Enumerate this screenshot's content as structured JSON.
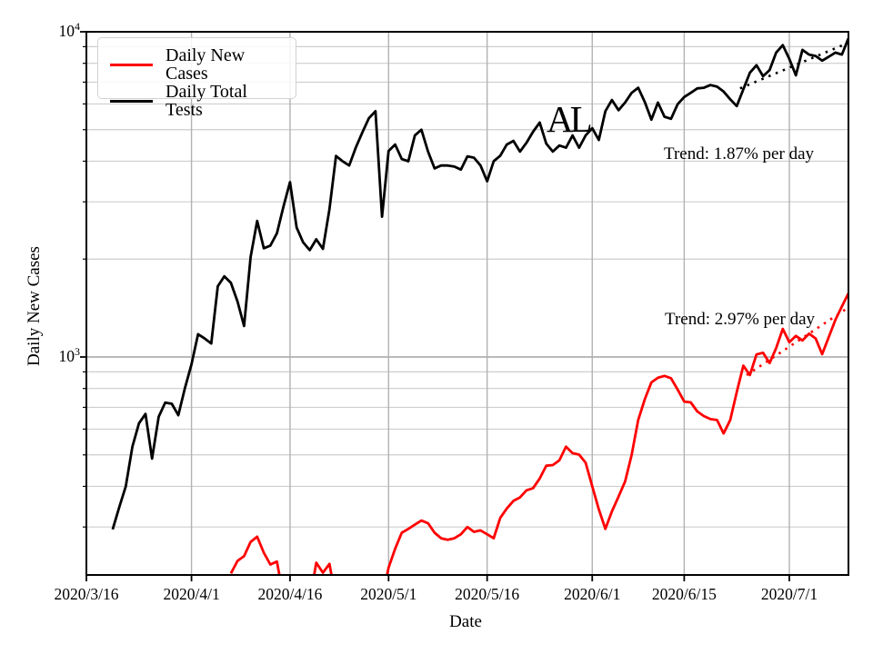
{
  "legend": {
    "entries": [
      {
        "label": "Daily New Cases",
        "color": "#ff0000"
      },
      {
        "label": "Daily Total Tests",
        "color": "#000000"
      }
    ]
  },
  "axes": {
    "xlabel": "Date",
    "ylabel": "Daily New Cases",
    "y_tick_labels": [
      {
        "base": "10",
        "exp": "4"
      },
      {
        "base": "10",
        "exp": "3"
      }
    ]
  },
  "annotations": {
    "state_label": "AL",
    "tests_trend": "Trend: 1.87% per day",
    "cases_trend": "Trend: 2.97% per day"
  },
  "chart_data": {
    "type": "line",
    "title": "AL",
    "xlabel": "Date",
    "ylabel": "Daily New Cases",
    "x_axis": {
      "unit": "days since 2020/3/16",
      "max_day": 116,
      "ticks": [
        {
          "day": 0,
          "label": "2020/3/16"
        },
        {
          "day": 16,
          "label": "2020/4/1"
        },
        {
          "day": 31,
          "label": "2020/4/16"
        },
        {
          "day": 46,
          "label": "2020/5/1"
        },
        {
          "day": 61,
          "label": "2020/5/16"
        },
        {
          "day": 77,
          "label": "2020/6/1"
        },
        {
          "day": 91,
          "label": "2020/6/15"
        },
        {
          "day": 107,
          "label": "2020/7/1"
        }
      ]
    },
    "y_axis": {
      "scale": "log",
      "lim": [
        213.6,
        10000
      ],
      "major_ticks": [
        1000,
        10000
      ],
      "minor_ticks": [
        300,
        400,
        500,
        600,
        700,
        800,
        900,
        2000,
        3000,
        4000,
        5000,
        6000,
        7000,
        8000,
        9000
      ],
      "grid": "both"
    },
    "series": [
      {
        "name": "Daily New Cases",
        "color": "#ff0000",
        "segments": [
          [
            [
              22,
              216
            ],
            [
              23,
              236
            ],
            [
              24,
              244
            ],
            [
              25,
              270
            ],
            [
              26,
              280
            ],
            [
              27,
              250
            ],
            [
              28,
              230
            ],
            [
              29,
              235
            ],
            [
              30,
              183
            ]
          ],
          [
            [
              34,
              178
            ],
            [
              35,
              233
            ],
            [
              36,
              217
            ],
            [
              37,
              231
            ],
            [
              38,
              178
            ]
          ],
          [
            [
              45,
              180
            ],
            [
              46,
              225
            ],
            [
              47,
              257
            ],
            [
              48,
              288
            ],
            [
              49,
              296
            ],
            [
              50,
              305
            ],
            [
              51,
              314
            ],
            [
              52,
              308
            ],
            [
              53,
              288
            ],
            [
              54,
              277
            ],
            [
              55,
              274
            ],
            [
              56,
              277
            ],
            [
              57,
              285
            ],
            [
              58,
              300
            ],
            [
              59,
              290
            ],
            [
              60,
              293
            ],
            [
              61,
              285
            ],
            [
              62,
              277
            ],
            [
              63,
              320
            ],
            [
              64,
              342
            ],
            [
              65,
              361
            ],
            [
              66,
              370
            ],
            [
              67,
              389
            ],
            [
              68,
              395
            ],
            [
              69,
              423
            ],
            [
              70,
              463
            ],
            [
              71,
              465
            ],
            [
              72,
              481
            ],
            [
              73,
              530
            ],
            [
              74,
              506
            ],
            [
              75,
              501
            ],
            [
              76,
              473
            ],
            [
              77,
              400
            ],
            [
              78,
              340
            ],
            [
              79,
              296
            ],
            [
              80,
              335
            ],
            [
              81,
              372
            ],
            [
              82,
              414
            ],
            [
              83,
              500
            ],
            [
              84,
              640
            ],
            [
              85,
              742
            ],
            [
              86,
              835
            ],
            [
              87,
              863
            ],
            [
              88,
              875
            ],
            [
              89,
              860
            ],
            [
              90,
              794
            ],
            [
              91,
              729
            ],
            [
              92,
              725
            ],
            [
              93,
              680
            ],
            [
              94,
              658
            ],
            [
              95,
              644
            ],
            [
              96,
              640
            ],
            [
              97,
              582
            ],
            [
              98,
              640
            ],
            [
              99,
              780
            ],
            [
              100,
              940
            ],
            [
              101,
              880
            ],
            [
              102,
              1018
            ],
            [
              103,
              1030
            ],
            [
              104,
              958
            ],
            [
              105,
              1065
            ],
            [
              106,
              1220
            ],
            [
              107,
              1110
            ],
            [
              108,
              1161
            ],
            [
              109,
              1124
            ],
            [
              110,
              1180
            ],
            [
              111,
              1140
            ],
            [
              112,
              1020
            ],
            [
              113,
              1150
            ],
            [
              114,
              1300
            ],
            [
              115,
              1430
            ],
            [
              116,
              1570
            ]
          ]
        ]
      },
      {
        "name": "Daily Total Tests",
        "color": "#000000",
        "segments": [
          [
            [
              4,
              295
            ],
            [
              5,
              345
            ],
            [
              6,
              400
            ],
            [
              7,
              530
            ],
            [
              8,
              625
            ],
            [
              9,
              668
            ],
            [
              10,
              487
            ],
            [
              11,
              655
            ],
            [
              12,
              724
            ],
            [
              13,
              718
            ],
            [
              14,
              662
            ],
            [
              15,
              803
            ],
            [
              16,
              950
            ],
            [
              17,
              1175
            ],
            [
              18,
              1140
            ],
            [
              19,
              1100
            ],
            [
              20,
              1650
            ],
            [
              21,
              1770
            ],
            [
              22,
              1690
            ],
            [
              23,
              1480
            ],
            [
              24,
              1245
            ],
            [
              25,
              2030
            ],
            [
              26,
              2620
            ],
            [
              27,
              2160
            ],
            [
              28,
              2200
            ],
            [
              29,
              2400
            ],
            [
              30,
              2900
            ],
            [
              31,
              3450
            ],
            [
              32,
              2500
            ],
            [
              33,
              2250
            ],
            [
              34,
              2130
            ],
            [
              35,
              2300
            ],
            [
              36,
              2150
            ],
            [
              37,
              2850
            ],
            [
              38,
              4150
            ],
            [
              39,
              4000
            ],
            [
              40,
              3880
            ],
            [
              41,
              4400
            ],
            [
              42,
              4900
            ],
            [
              43,
              5420
            ],
            [
              44,
              5700
            ],
            [
              45,
              2700
            ],
            [
              46,
              4300
            ],
            [
              47,
              4500
            ],
            [
              48,
              4060
            ],
            [
              49,
              4000
            ],
            [
              50,
              4800
            ],
            [
              51,
              5000
            ],
            [
              52,
              4280
            ],
            [
              53,
              3800
            ],
            [
              54,
              3880
            ],
            [
              55,
              3880
            ],
            [
              56,
              3850
            ],
            [
              57,
              3770
            ],
            [
              58,
              4140
            ],
            [
              59,
              4100
            ],
            [
              60,
              3880
            ],
            [
              61,
              3470
            ],
            [
              62,
              4000
            ],
            [
              63,
              4160
            ],
            [
              64,
              4500
            ],
            [
              65,
              4620
            ],
            [
              66,
              4280
            ],
            [
              67,
              4560
            ],
            [
              68,
              4930
            ],
            [
              69,
              5260
            ],
            [
              70,
              4530
            ],
            [
              71,
              4280
            ],
            [
              72,
              4470
            ],
            [
              73,
              4400
            ],
            [
              74,
              4800
            ],
            [
              75,
              4400
            ],
            [
              76,
              4800
            ],
            [
              77,
              5050
            ],
            [
              78,
              4650
            ],
            [
              79,
              5700
            ],
            [
              80,
              6170
            ],
            [
              81,
              5740
            ],
            [
              82,
              6060
            ],
            [
              83,
              6490
            ],
            [
              84,
              6730
            ],
            [
              85,
              6080
            ],
            [
              86,
              5370
            ],
            [
              87,
              6060
            ],
            [
              88,
              5480
            ],
            [
              89,
              5400
            ],
            [
              90,
              5990
            ],
            [
              91,
              6300
            ],
            [
              92,
              6490
            ],
            [
              93,
              6700
            ],
            [
              94,
              6730
            ],
            [
              95,
              6860
            ],
            [
              96,
              6780
            ],
            [
              97,
              6550
            ],
            [
              98,
              6200
            ],
            [
              99,
              5910
            ],
            [
              100,
              6650
            ],
            [
              101,
              7480
            ],
            [
              102,
              7890
            ],
            [
              103,
              7300
            ],
            [
              104,
              7630
            ],
            [
              105,
              8630
            ],
            [
              106,
              9100
            ],
            [
              107,
              8250
            ],
            [
              108,
              7350
            ],
            [
              109,
              8800
            ],
            [
              110,
              8510
            ],
            [
              111,
              8430
            ],
            [
              112,
              8150
            ],
            [
              113,
              8380
            ],
            [
              114,
              8630
            ],
            [
              115,
              8510
            ],
            [
              116,
              9550
            ]
          ]
        ]
      }
    ],
    "trend_lines": [
      {
        "name": "tests-trend",
        "color": "#000000",
        "rate": "1.87% per day",
        "points": [
          [
            99.5,
            6700
          ],
          [
            116,
            9250
          ]
        ]
      },
      {
        "name": "cases-trend",
        "color": "#ff0000",
        "rate": "2.97% per day",
        "points": [
          [
            100.5,
            880
          ],
          [
            116,
            1420
          ]
        ]
      }
    ],
    "legend_position": "upper left"
  }
}
